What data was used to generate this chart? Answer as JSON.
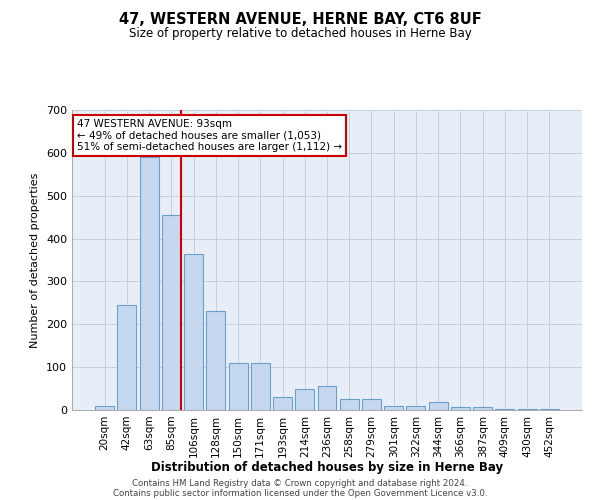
{
  "title": "47, WESTERN AVENUE, HERNE BAY, CT6 8UF",
  "subtitle": "Size of property relative to detached houses in Herne Bay",
  "xlabel": "Distribution of detached houses by size in Herne Bay",
  "ylabel": "Number of detached properties",
  "categories": [
    "20sqm",
    "42sqm",
    "63sqm",
    "85sqm",
    "106sqm",
    "128sqm",
    "150sqm",
    "171sqm",
    "193sqm",
    "214sqm",
    "236sqm",
    "258sqm",
    "279sqm",
    "301sqm",
    "322sqm",
    "344sqm",
    "366sqm",
    "387sqm",
    "409sqm",
    "430sqm",
    "452sqm"
  ],
  "values": [
    10,
    245,
    590,
    455,
    365,
    230,
    110,
    110,
    30,
    50,
    55,
    25,
    25,
    10,
    10,
    18,
    8,
    8,
    3,
    3,
    3
  ],
  "bar_color": "#c5d8f0",
  "bar_edge_color": "#6aa0cc",
  "red_line_x": 3.42,
  "annotation_line1": "47 WESTERN AVENUE: 93sqm",
  "annotation_line2": "← 49% of detached houses are smaller (1,053)",
  "annotation_line3": "51% of semi-detached houses are larger (1,112) →",
  "footer_line1": "Contains HM Land Registry data © Crown copyright and database right 2024.",
  "footer_line2": "Contains public sector information licensed under the Open Government Licence v3.0.",
  "ylim": [
    0,
    700
  ],
  "yticks": [
    0,
    100,
    200,
    300,
    400,
    500,
    600,
    700
  ],
  "background_color": "#e8eef8",
  "grid_color": "#c8d0e0"
}
